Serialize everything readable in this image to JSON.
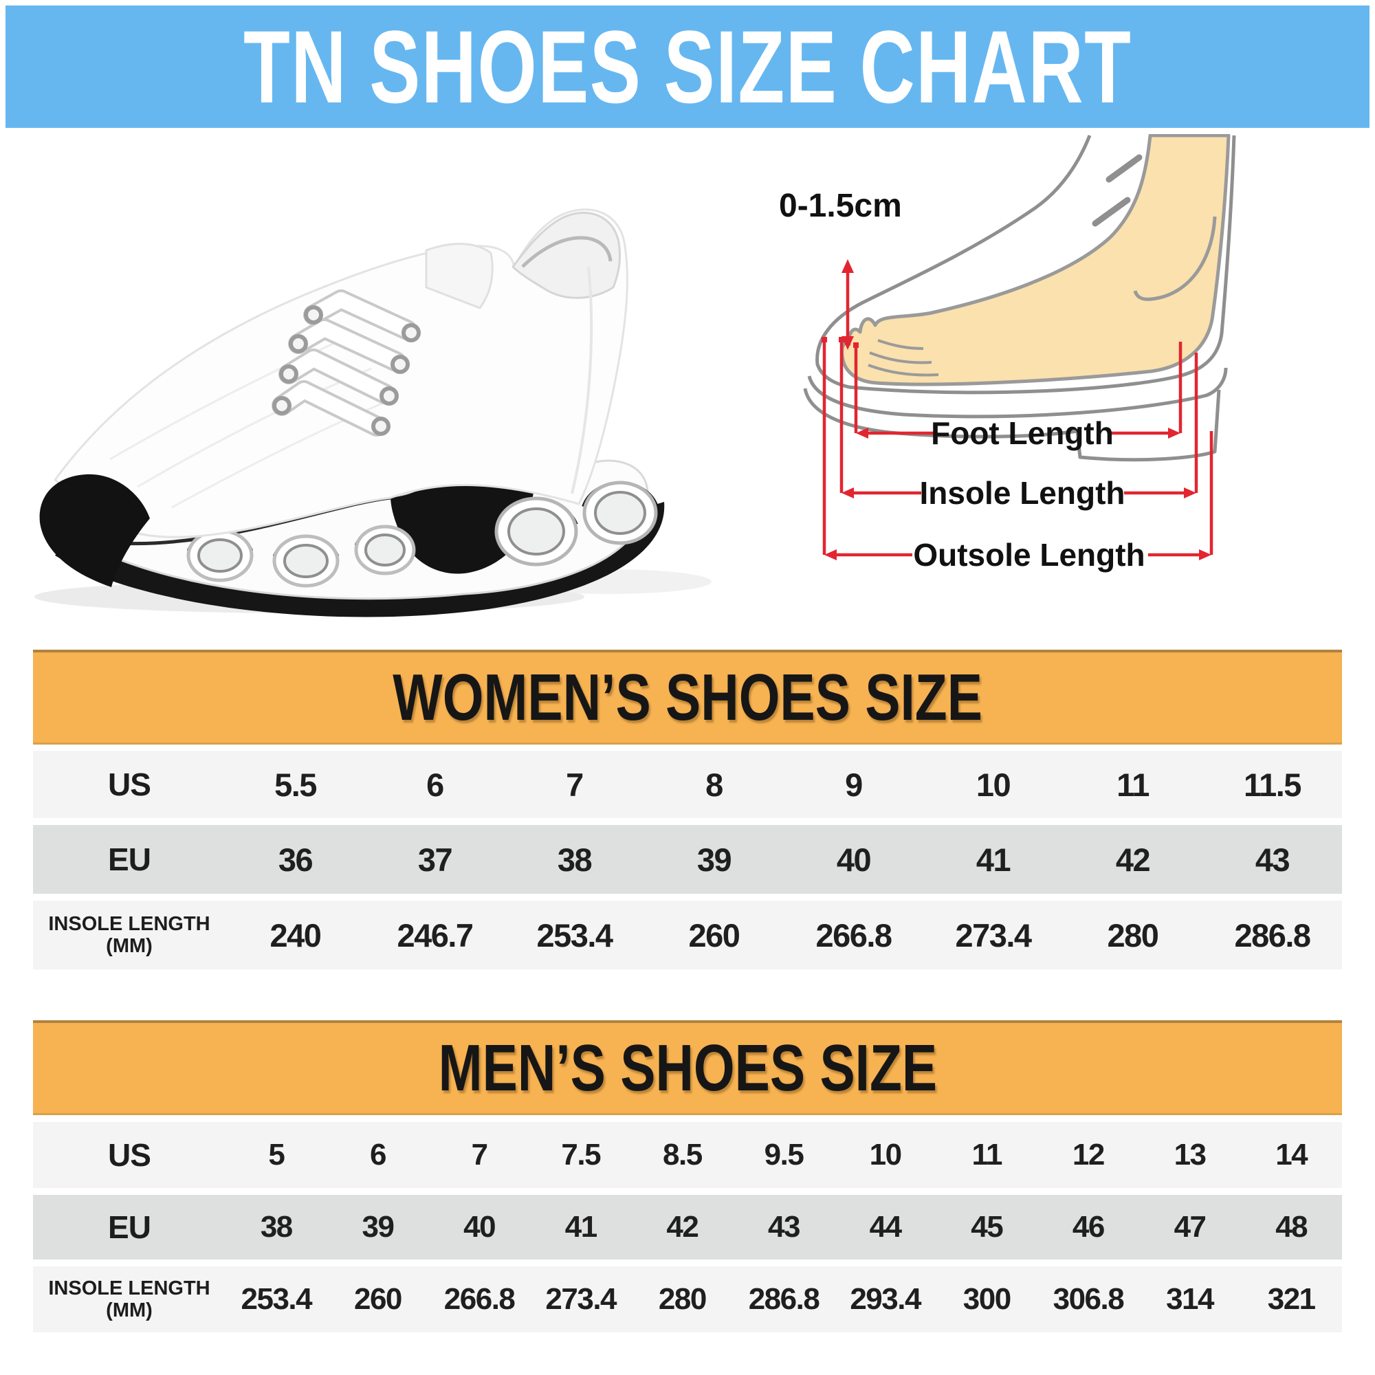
{
  "title": "TN SHOES SIZE CHART",
  "diagram": {
    "toe_gap_label": "0-1.5cm",
    "foot_length_label": "Foot Length",
    "insole_length_label": "Insole Length",
    "outsole_length_label": "Outsole Length"
  },
  "women_table": {
    "header": "WOMEN’S SHOES SIZE",
    "us_row": {
      "label": "US",
      "values": [
        "5.5",
        "6",
        "7",
        "8",
        "9",
        "10",
        "11",
        "11.5"
      ]
    },
    "eu_row": {
      "label": "EU",
      "values": [
        "36",
        "37",
        "38",
        "39",
        "40",
        "41",
        "42",
        "43"
      ]
    },
    "insole_row": {
      "label": "INSOLE LENGTH",
      "label_sub": "(MM)",
      "values": [
        "240",
        "246.7",
        "253.4",
        "260",
        "266.8",
        "273.4",
        "280",
        "286.8"
      ]
    }
  },
  "men_table": {
    "header": "MEN’S SHOES SIZE",
    "us_row": {
      "label": "US",
      "values": [
        "5",
        "6",
        "7",
        "7.5",
        "8.5",
        "9.5",
        "10",
        "11",
        "12",
        "13",
        "14"
      ]
    },
    "eu_row": {
      "label": "EU",
      "values": [
        "38",
        "39",
        "40",
        "41",
        "42",
        "43",
        "44",
        "45",
        "46",
        "47",
        "48"
      ]
    },
    "insole_row": {
      "label": "INSOLE LENGTH",
      "label_sub": "(MM)",
      "values": [
        "253.4",
        "260",
        "266.8",
        "273.4",
        "280",
        "286.8",
        "293.4",
        "300",
        "306.8",
        "314",
        "321"
      ]
    }
  },
  "colors": {
    "banner_blue": "#66b7f0",
    "header_orange": "#f7b252",
    "row_light": "#f4f4f5",
    "row_gray": "#dedfdf",
    "measure_red": "#e22530",
    "foot_skin": "#fae1ae",
    "outline_gray": "#8f8f8f",
    "text_dark": "#1d1d1d"
  }
}
